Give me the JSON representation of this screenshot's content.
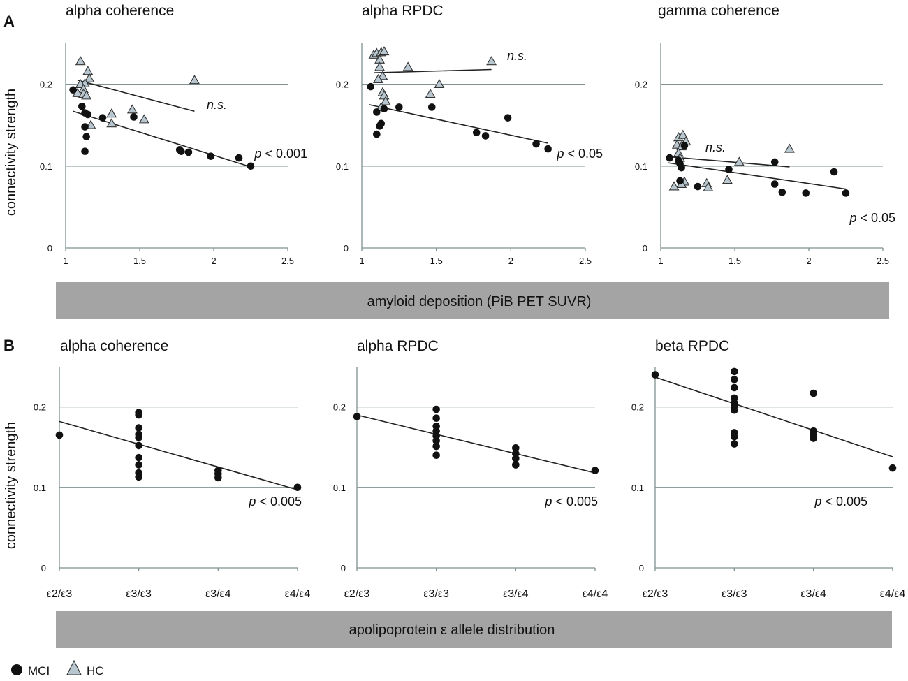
{
  "legend": [
    {
      "key": "mci",
      "label": "MCI",
      "marker": "filled-circle"
    },
    {
      "key": "hc",
      "label": "HC",
      "marker": "open-triangle"
    }
  ],
  "bands": [
    {
      "panel_group": "A",
      "text": "amyloid deposition (PiB PET SUVR)"
    },
    {
      "panel_group": "B",
      "text": "apolipoprotein ε allele distribution"
    }
  ],
  "ylabel": "connectivity strength",
  "colors": {
    "grid": "#7f9191",
    "band": "#a4a4a4",
    "hc_fill": "#b8c7cf",
    "mci_fill": "#111111"
  },
  "chart_data": [
    {
      "type": "scatter",
      "panel": "A",
      "title": "alpha coherence",
      "xlim": [
        1,
        2.5
      ],
      "ylim": [
        0,
        0.25
      ],
      "xticks": [
        1,
        1.5,
        2,
        2.5
      ],
      "xtick_labels": [
        "1",
        "1.5",
        "2",
        "2.5"
      ],
      "yticks": [
        0,
        0.1,
        0.2
      ],
      "ytick_labels": [
        "0",
        "0.1",
        "0.2"
      ],
      "series": [
        {
          "name": "MCI",
          "points": [
            [
              1.05,
              0.193
            ],
            [
              1.11,
              0.173
            ],
            [
              1.13,
              0.165
            ],
            [
              1.15,
              0.163
            ],
            [
              1.13,
              0.148
            ],
            [
              1.14,
              0.136
            ],
            [
              1.13,
              0.118
            ],
            [
              1.25,
              0.159
            ],
            [
              1.46,
              0.16
            ],
            [
              1.77,
              0.12
            ],
            [
              1.78,
              0.118
            ],
            [
              1.83,
              0.117
            ],
            [
              1.98,
              0.112
            ],
            [
              2.17,
              0.11
            ],
            [
              2.25,
              0.1
            ]
          ],
          "fit": [
            [
              1.05,
              0.167
            ],
            [
              2.25,
              0.099
            ]
          ],
          "annotation": {
            "p": "p",
            "rest": " < 0.001"
          }
        },
        {
          "name": "HC",
          "points": [
            [
              1.1,
              0.228
            ],
            [
              1.15,
              0.216
            ],
            [
              1.16,
              0.207
            ],
            [
              1.13,
              0.201
            ],
            [
              1.1,
              0.2
            ],
            [
              1.12,
              0.194
            ],
            [
              1.08,
              0.189
            ],
            [
              1.12,
              0.188
            ],
            [
              1.14,
              0.186
            ],
            [
              1.17,
              0.15
            ],
            [
              1.31,
              0.164
            ],
            [
              1.31,
              0.152
            ],
            [
              1.45,
              0.169
            ],
            [
              1.53,
              0.157
            ],
            [
              1.87,
              0.205
            ]
          ],
          "fit": [
            [
              1.08,
              0.205
            ],
            [
              1.87,
              0.167
            ]
          ],
          "annotation": {
            "ns": "n.s."
          }
        }
      ]
    },
    {
      "type": "scatter",
      "panel": "A",
      "title": "alpha RPDC",
      "xlim": [
        1,
        2.5
      ],
      "ylim": [
        0,
        0.25
      ],
      "xticks": [
        1,
        1.5,
        2,
        2.5
      ],
      "xtick_labels": [
        "1",
        "1.5",
        "2",
        "2.5"
      ],
      "yticks": [
        0,
        0.1,
        0.2
      ],
      "ytick_labels": [
        "0",
        "0.1",
        "0.2"
      ],
      "series": [
        {
          "name": "MCI",
          "points": [
            [
              1.06,
              0.197
            ],
            [
              1.1,
              0.166
            ],
            [
              1.13,
              0.152
            ],
            [
              1.12,
              0.149
            ],
            [
              1.1,
              0.139
            ],
            [
              1.15,
              0.17
            ],
            [
              1.25,
              0.172
            ],
            [
              1.47,
              0.172
            ],
            [
              1.77,
              0.141
            ],
            [
              1.83,
              0.137
            ],
            [
              1.98,
              0.159
            ],
            [
              2.17,
              0.127
            ],
            [
              2.25,
              0.121
            ]
          ],
          "fit": [
            [
              1.05,
              0.175
            ],
            [
              2.25,
              0.128
            ]
          ],
          "annotation": {
            "p": "p",
            "rest": " < 0.05"
          }
        },
        {
          "name": "HC",
          "points": [
            [
              1.08,
              0.236
            ],
            [
              1.1,
              0.238
            ],
            [
              1.13,
              0.239
            ],
            [
              1.12,
              0.23
            ],
            [
              1.15,
              0.24
            ],
            [
              1.12,
              0.221
            ],
            [
              1.14,
              0.21
            ],
            [
              1.11,
              0.206
            ],
            [
              1.14,
              0.19
            ],
            [
              1.15,
              0.186
            ],
            [
              1.16,
              0.179
            ],
            [
              1.13,
              0.172
            ],
            [
              1.31,
              0.221
            ],
            [
              1.46,
              0.188
            ],
            [
              1.52,
              0.2
            ],
            [
              1.87,
              0.228
            ]
          ],
          "fit": [
            [
              1.08,
              0.214
            ],
            [
              1.87,
              0.218
            ]
          ],
          "annotation": {
            "ns": "n.s."
          }
        }
      ]
    },
    {
      "type": "scatter",
      "panel": "A",
      "title": "gamma coherence",
      "xlim": [
        1,
        2.5
      ],
      "ylim": [
        0,
        0.25
      ],
      "xticks": [
        1,
        1.5,
        2,
        2.5
      ],
      "xtick_labels": [
        "1",
        "1.5",
        "2",
        "2.5"
      ],
      "yticks": [
        0,
        0.1,
        0.2
      ],
      "ytick_labels": [
        "0",
        "0.1",
        "0.2"
      ],
      "series": [
        {
          "name": "MCI",
          "points": [
            [
              1.06,
              0.11
            ],
            [
              1.12,
              0.107
            ],
            [
              1.13,
              0.103
            ],
            [
              1.14,
              0.098
            ],
            [
              1.16,
              0.125
            ],
            [
              1.13,
              0.082
            ],
            [
              1.25,
              0.075
            ],
            [
              1.46,
              0.096
            ],
            [
              1.77,
              0.105
            ],
            [
              1.77,
              0.078
            ],
            [
              1.82,
              0.068
            ],
            [
              1.98,
              0.067
            ],
            [
              2.17,
              0.093
            ],
            [
              2.25,
              0.067
            ]
          ],
          "fit": [
            [
              1.05,
              0.104
            ],
            [
              2.25,
              0.072
            ]
          ],
          "annotation": {
            "p": "p",
            "rest": " < 0.05"
          }
        },
        {
          "name": "HC",
          "points": [
            [
              1.12,
              0.135
            ],
            [
              1.15,
              0.138
            ],
            [
              1.17,
              0.13
            ],
            [
              1.11,
              0.126
            ],
            [
              1.14,
              0.124
            ],
            [
              1.12,
              0.116
            ],
            [
              1.13,
              0.11
            ],
            [
              1.16,
              0.081
            ],
            [
              1.14,
              0.078
            ],
            [
              1.09,
              0.075
            ],
            [
              1.31,
              0.079
            ],
            [
              1.32,
              0.074
            ],
            [
              1.45,
              0.083
            ],
            [
              1.53,
              0.105
            ],
            [
              1.87,
              0.121
            ]
          ],
          "fit": [
            [
              1.08,
              0.111
            ],
            [
              1.87,
              0.099
            ]
          ],
          "annotation": {
            "ns": "n.s."
          }
        }
      ]
    },
    {
      "type": "scatter",
      "panel": "B",
      "title": "alpha coherence",
      "xlim": [
        0,
        3
      ],
      "ylim": [
        0,
        0.25
      ],
      "xticks": [
        0,
        1,
        2,
        3
      ],
      "xtick_labels": [
        "ε2/ε3",
        "ε3/ε3",
        "ε3/ε4",
        "ε4/ε4"
      ],
      "yticks": [
        0,
        0.1,
        0.2
      ],
      "ytick_labels": [
        "0",
        "0.1",
        "0.2"
      ],
      "series": [
        {
          "name": "MCI",
          "points": [
            [
              0,
              0.165
            ],
            [
              1,
              0.193
            ],
            [
              1,
              0.19
            ],
            [
              1,
              0.174
            ],
            [
              1,
              0.166
            ],
            [
              1,
              0.162
            ],
            [
              1,
              0.152
            ],
            [
              1,
              0.137
            ],
            [
              1,
              0.128
            ],
            [
              1,
              0.118
            ],
            [
              1,
              0.113
            ],
            [
              2,
              0.121
            ],
            [
              2,
              0.117
            ],
            [
              2,
              0.112
            ],
            [
              3,
              0.1
            ]
          ],
          "fit": [
            [
              0,
              0.182
            ],
            [
              3,
              0.097
            ]
          ],
          "annotation": {
            "p": "p",
            "rest": " < 0.005"
          }
        }
      ]
    },
    {
      "type": "scatter",
      "panel": "B",
      "title": "alpha RPDC",
      "xlim": [
        0,
        3
      ],
      "ylim": [
        0,
        0.25
      ],
      "xticks": [
        0,
        1,
        2,
        3
      ],
      "xtick_labels": [
        "ε2/ε3",
        "ε3/ε3",
        "ε3/ε4",
        "ε4/ε4"
      ],
      "yticks": [
        0,
        0.1,
        0.2
      ],
      "ytick_labels": [
        "0",
        "0.1",
        "0.2"
      ],
      "series": [
        {
          "name": "MCI",
          "points": [
            [
              0,
              0.188
            ],
            [
              1,
              0.197
            ],
            [
              1,
              0.186
            ],
            [
              1,
              0.176
            ],
            [
              1,
              0.17
            ],
            [
              1,
              0.164
            ],
            [
              1,
              0.158
            ],
            [
              1,
              0.151
            ],
            [
              1,
              0.14
            ],
            [
              2,
              0.149
            ],
            [
              2,
              0.142
            ],
            [
              2,
              0.136
            ],
            [
              2,
              0.128
            ],
            [
              3,
              0.121
            ]
          ],
          "fit": [
            [
              0,
              0.19
            ],
            [
              3,
              0.118
            ]
          ],
          "annotation": {
            "p": "p",
            "rest": " < 0.005"
          }
        }
      ]
    },
    {
      "type": "scatter",
      "panel": "B",
      "title": "beta RPDC",
      "xlim": [
        0,
        3
      ],
      "ylim": [
        0,
        0.25
      ],
      "xticks": [
        0,
        1,
        2,
        3
      ],
      "xtick_labels": [
        "ε2/ε3",
        "ε3/ε3",
        "ε3/ε4",
        "ε4/ε4"
      ],
      "yticks": [
        0,
        0.1,
        0.2
      ],
      "ytick_labels": [
        "0",
        "0.1",
        "0.2"
      ],
      "series": [
        {
          "name": "MCI",
          "points": [
            [
              0,
              0.24
            ],
            [
              1,
              0.244
            ],
            [
              1,
              0.234
            ],
            [
              1,
              0.224
            ],
            [
              1,
              0.211
            ],
            [
              1,
              0.205
            ],
            [
              1,
              0.201
            ],
            [
              1,
              0.196
            ],
            [
              1,
              0.168
            ],
            [
              1,
              0.163
            ],
            [
              1,
              0.154
            ],
            [
              2,
              0.217
            ],
            [
              2,
              0.17
            ],
            [
              2,
              0.166
            ],
            [
              2,
              0.161
            ],
            [
              3,
              0.124
            ]
          ],
          "fit": [
            [
              0,
              0.237
            ],
            [
              3,
              0.138
            ]
          ],
          "annotation": {
            "p": "p",
            "rest": " < 0.005"
          }
        }
      ]
    }
  ]
}
